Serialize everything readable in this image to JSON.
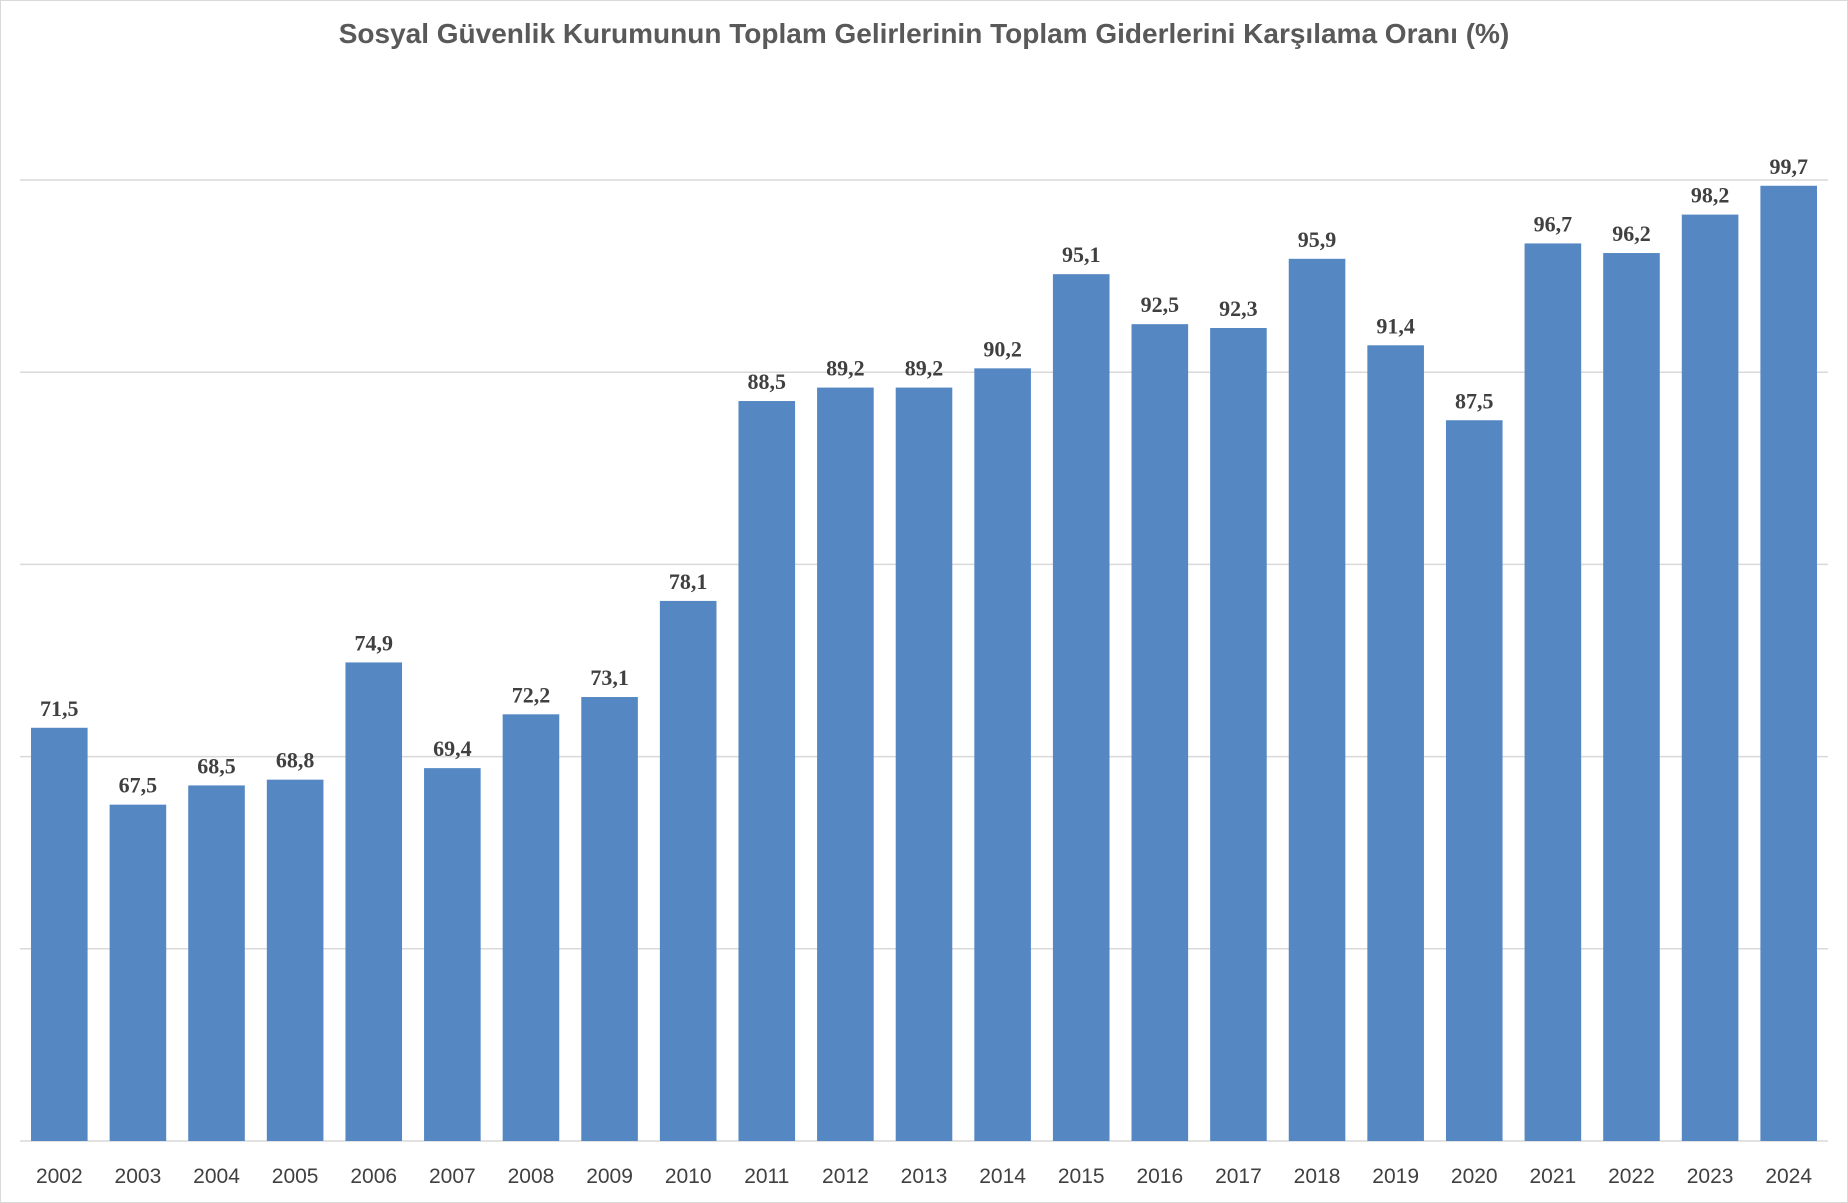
{
  "chart_data": {
    "type": "bar",
    "title": "Sosyal Güvenlik Kurumunun Toplam Gelirlerinin Toplam Giderlerini Karşılama Oranı (%)",
    "xlabel": "",
    "ylabel": "",
    "categories": [
      "2002",
      "2003",
      "2004",
      "2005",
      "2006",
      "2007",
      "2008",
      "2009",
      "2010",
      "2011",
      "2012",
      "2013",
      "2014",
      "2015",
      "2016",
      "2017",
      "2018",
      "2019",
      "2020",
      "2021",
      "2022",
      "2023",
      "2024"
    ],
    "values": [
      71.5,
      67.5,
      68.5,
      68.8,
      74.9,
      69.4,
      72.2,
      73.1,
      78.1,
      88.5,
      89.2,
      89.2,
      90.2,
      95.1,
      92.5,
      92.3,
      95.9,
      91.4,
      87.5,
      96.7,
      96.2,
      98.2,
      99.7
    ],
    "data_labels": [
      "71,5",
      "67,5",
      "68,5",
      "68,8",
      "74,9",
      "69,4",
      "72,2",
      "73,1",
      "78,1",
      "88,5",
      "89,2",
      "89,2",
      "90,2",
      "95,1",
      "92,5",
      "92,3",
      "95,9",
      "91,4",
      "87,5",
      "96,7",
      "96,2",
      "98,2",
      "99,7"
    ],
    "ylim": [
      50,
      100
    ],
    "gridlines": [
      50,
      60,
      70,
      80,
      90,
      100
    ],
    "y_tick_labels_shown": false,
    "grid": true,
    "legend": "none",
    "colors": {
      "bar": "#5588c3",
      "grid": "#d9d9d9",
      "text": "#404040",
      "title": "#595959"
    }
  }
}
